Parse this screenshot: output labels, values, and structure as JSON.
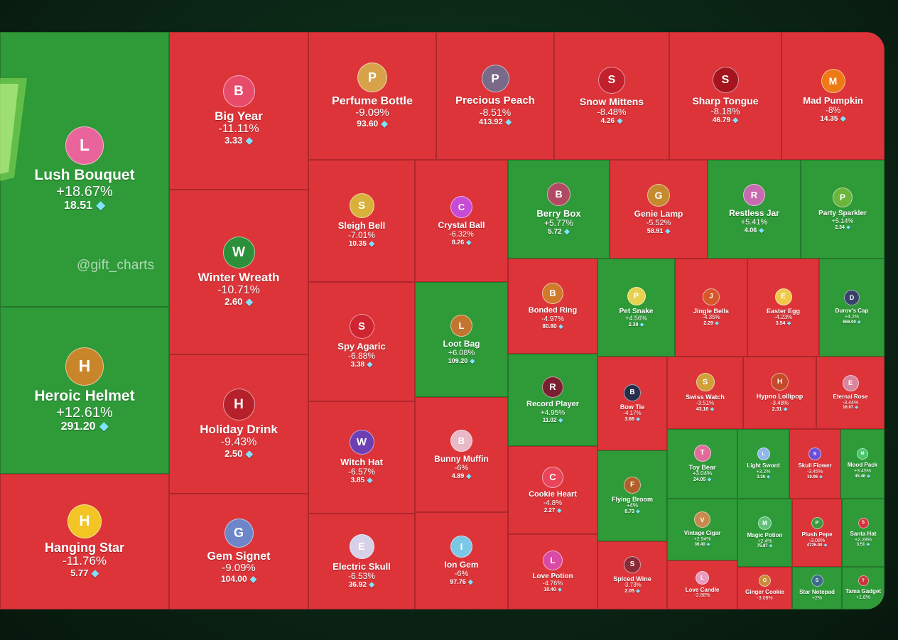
{
  "chart_data": {
    "type": "treemap",
    "title": "",
    "watermark": "@gift_charts",
    "currency_icon": "diamond-icon",
    "colors": {
      "up": "#2e9a38",
      "down": "#dd3439"
    },
    "items": [
      {
        "name": "Lush Bouquet",
        "change": "+18.67%",
        "price": "18.51",
        "trend": "up"
      },
      {
        "name": "Heroic Helmet",
        "change": "+12.61%",
        "price": "291.20",
        "trend": "up"
      },
      {
        "name": "Hanging Star",
        "change": "-11.76%",
        "price": "5.77",
        "trend": "down"
      },
      {
        "name": "Big Year",
        "change": "-11.11%",
        "price": "3.33",
        "trend": "down"
      },
      {
        "name": "Winter Wreath",
        "change": "-10.71%",
        "price": "2.60",
        "trend": "down"
      },
      {
        "name": "Holiday Drink",
        "change": "-9.43%",
        "price": "2.50",
        "trend": "down"
      },
      {
        "name": "Gem Signet",
        "change": "-9.09%",
        "price": "104.00",
        "trend": "down"
      },
      {
        "name": "Perfume Bottle",
        "change": "-9.09%",
        "price": "93.60",
        "trend": "down"
      },
      {
        "name": "Precious Peach",
        "change": "-8.51%",
        "price": "413.92",
        "trend": "down"
      },
      {
        "name": "Snow Mittens",
        "change": "-8.48%",
        "price": "4.26",
        "trend": "down"
      },
      {
        "name": "Sharp Tongue",
        "change": "-8.18%",
        "price": "46.79",
        "trend": "down"
      },
      {
        "name": "Mad Pumpkin",
        "change": "-8%",
        "price": "14.35",
        "trend": "down"
      },
      {
        "name": "Sleigh Bell",
        "change": "-7.01%",
        "price": "10.35",
        "trend": "down"
      },
      {
        "name": "Crystal Ball",
        "change": "-6.32%",
        "price": "8.26",
        "trend": "down"
      },
      {
        "name": "Spy Agaric",
        "change": "-6.88%",
        "price": "3.38",
        "trend": "down"
      },
      {
        "name": "Loot Bag",
        "change": "+6.08%",
        "price": "109.20",
        "trend": "up"
      },
      {
        "name": "Witch Hat",
        "change": "-6.57%",
        "price": "3.85",
        "trend": "down"
      },
      {
        "name": "Bunny Muffin",
        "change": "-6%",
        "price": "4.89",
        "trend": "down"
      },
      {
        "name": "Electric Skull",
        "change": "-6.53%",
        "price": "36.92",
        "trend": "down"
      },
      {
        "name": "Ion Gem",
        "change": "-6%",
        "price": "97.76",
        "trend": "down"
      },
      {
        "name": "Berry Box",
        "change": "+5.77%",
        "price": "5.72",
        "trend": "up"
      },
      {
        "name": "Genie Lamp",
        "change": "-5.52%",
        "price": "58.91",
        "trend": "down"
      },
      {
        "name": "Restless Jar",
        "change": "+5.41%",
        "price": "4.06",
        "trend": "up"
      },
      {
        "name": "Party Sparkler",
        "change": "+5.14%",
        "price": "2.34",
        "trend": "up"
      },
      {
        "name": "Bonded Ring",
        "change": "-4.97%",
        "price": "80.80",
        "trend": "down"
      },
      {
        "name": "Pet Snake",
        "change": "+4.56%",
        "price": "2.39",
        "trend": "up"
      },
      {
        "name": "Jingle Bells",
        "change": "-4.35%",
        "price": "2.29",
        "trend": "down"
      },
      {
        "name": "Easter Egg",
        "change": "-4.23%",
        "price": "3.54",
        "trend": "down"
      },
      {
        "name": "Durov's Cap",
        "change": "+4.2%",
        "price": "666.00",
        "trend": "up"
      },
      {
        "name": "Record Player",
        "change": "+4.95%",
        "price": "11.02",
        "trend": "up"
      },
      {
        "name": "Bow Tie",
        "change": "-4.17%",
        "price": "3.66",
        "trend": "down"
      },
      {
        "name": "Swiss Watch",
        "change": "-3.51%",
        "price": "43.16",
        "trend": "down"
      },
      {
        "name": "Hypno Lollipop",
        "change": "-3.48%",
        "price": "2.31",
        "trend": "down"
      },
      {
        "name": "Eternal Rose",
        "change": "-3.44%",
        "price": "16.07",
        "trend": "down"
      },
      {
        "name": "Cookie Heart",
        "change": "-4.8%",
        "price": "2.27",
        "trend": "down"
      },
      {
        "name": "Toy Bear",
        "change": "+3.04%",
        "price": "24.05",
        "trend": "up"
      },
      {
        "name": "Light Sword",
        "change": "+3.2%",
        "price": "3.36",
        "trend": "up"
      },
      {
        "name": "Skull Flower",
        "change": "-3.45%",
        "price": "10.96",
        "trend": "down"
      },
      {
        "name": "Mood Pack",
        "change": "+3.45%",
        "price": "45.46",
        "trend": "up"
      },
      {
        "name": "Flying Broom",
        "change": "+4%",
        "price": "8.73",
        "trend": "up"
      },
      {
        "name": "Vintage Cigar",
        "change": "+2.94%",
        "price": "36.40",
        "trend": "up"
      },
      {
        "name": "Magic Potion",
        "change": "+2.4%",
        "price": "75.87",
        "trend": "up"
      },
      {
        "name": "Plush Pepe",
        "change": "-3.08%",
        "price": "4725.00",
        "trend": "down"
      },
      {
        "name": "Santa Hat",
        "change": "+2.28%",
        "price": "3.51",
        "trend": "up"
      },
      {
        "name": "Love Potion",
        "change": "-4.76%",
        "price": "10.40",
        "trend": "down"
      },
      {
        "name": "Spiced Wine",
        "change": "-3.73%",
        "price": "2.05",
        "trend": "down"
      },
      {
        "name": "Love Candle",
        "change": "-2.88%",
        "price": "",
        "trend": "down"
      },
      {
        "name": "Ginger Cookie",
        "change": "-3.08%",
        "price": "",
        "trend": "down"
      },
      {
        "name": "Star Notepad",
        "change": "+2%",
        "price": "",
        "trend": "up"
      },
      {
        "name": "Tama Gadget",
        "change": "+1.8%",
        "price": "",
        "trend": "up"
      }
    ]
  }
}
